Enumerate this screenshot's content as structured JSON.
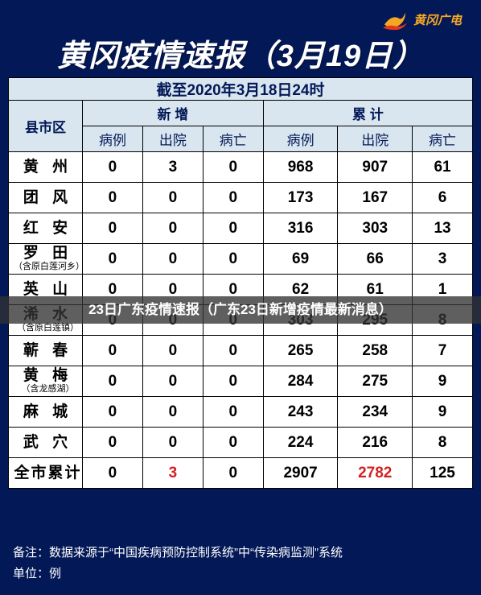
{
  "brand": {
    "text": "黄冈广电",
    "icon_color_top": "#f5a623",
    "icon_color_bot": "#e53a1a"
  },
  "title": "黄冈疫情速报（3月19日）",
  "subtitle": "截至2020年3月18日24时",
  "headers": {
    "region": "县市区",
    "group_new": "新  增",
    "group_total": "累  计",
    "cases": "病例",
    "discharged": "出院",
    "deaths": "病亡"
  },
  "rows": [
    {
      "region": "黄  州",
      "note": "",
      "new": [
        0,
        3,
        0
      ],
      "cum": [
        968,
        907,
        61
      ]
    },
    {
      "region": "团  风",
      "note": "",
      "new": [
        0,
        0,
        0
      ],
      "cum": [
        173,
        167,
        6
      ]
    },
    {
      "region": "红  安",
      "note": "",
      "new": [
        0,
        0,
        0
      ],
      "cum": [
        316,
        303,
        13
      ]
    },
    {
      "region": "罗  田",
      "note": "（含原白莲河乡）",
      "new": [
        0,
        0,
        0
      ],
      "cum": [
        69,
        66,
        3
      ]
    },
    {
      "region": "英  山",
      "note": "",
      "new": [
        0,
        0,
        0
      ],
      "cum": [
        62,
        61,
        1
      ]
    },
    {
      "region": "浠  水",
      "note": "（含原白莲镇）",
      "new": [
        0,
        0,
        0
      ],
      "cum": [
        303,
        295,
        8
      ]
    },
    {
      "region": "蕲  春",
      "note": "",
      "new": [
        0,
        0,
        0
      ],
      "cum": [
        265,
        258,
        7
      ]
    },
    {
      "region": "黄  梅",
      "note": "（含龙感湖）",
      "new": [
        0,
        0,
        0
      ],
      "cum": [
        284,
        275,
        9
      ]
    },
    {
      "region": "麻  城",
      "note": "",
      "new": [
        0,
        0,
        0
      ],
      "cum": [
        243,
        234,
        9
      ]
    },
    {
      "region": "武  穴",
      "note": "",
      "new": [
        0,
        0,
        0
      ],
      "cum": [
        224,
        216,
        8
      ]
    }
  ],
  "total": {
    "label": "全市累计",
    "new": [
      0,
      3,
      0
    ],
    "cum": [
      2907,
      2782,
      125
    ],
    "red_cols": [
      1,
      4
    ]
  },
  "overlay": "23日广东疫情速报（广东23日新增疫情最新消息）",
  "footer": {
    "line1": "备注：数据来源于“中国疾病预防控制系统”中“传染病监测”系统",
    "line2": "单位：例"
  },
  "style": {
    "bg": "#031857",
    "header_bg": "#d9e6ef",
    "border": "#000000",
    "title_color": "#ffffff",
    "brand_color": "#f5a623"
  }
}
